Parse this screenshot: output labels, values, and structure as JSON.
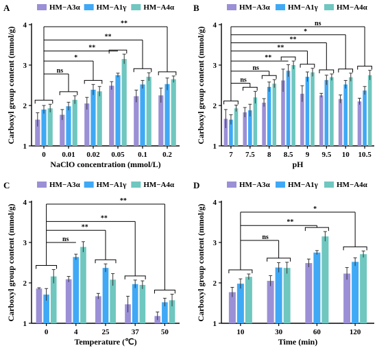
{
  "colors": {
    "A3a": "#9b8fd6",
    "A1g": "#3fa9f5",
    "A4a": "#6fc7bf"
  },
  "chart_data": [
    {
      "type": "bar",
      "panel": "A",
      "title": "A",
      "xlabel": "NaClO concentration (mmol/L)",
      "ylabel": "Carboxyl group content (mmol/g)",
      "ylim": [
        1,
        4
      ],
      "yticks": [
        "1",
        "2",
        "3",
        "4"
      ],
      "categories": [
        "0",
        "0.01",
        "0.02",
        "0.05",
        "0.1",
        "0.2"
      ],
      "series": [
        {
          "name": "HM−A3α",
          "color": "#9b8fd6",
          "values": [
            1.65,
            1.77,
            2.05,
            2.49,
            2.23,
            2.25
          ],
          "errors": [
            0.17,
            0.13,
            0.15,
            0.1,
            0.15,
            0.18
          ]
        },
        {
          "name": "HM−A1γ",
          "color": "#3fa9f5",
          "values": [
            1.9,
            1.98,
            2.39,
            2.75,
            2.52,
            2.53
          ],
          "errors": [
            0.1,
            0.1,
            0.13,
            0.05,
            0.1,
            0.15
          ]
        },
        {
          "name": "HM−A4α",
          "color": "#6fc7bf",
          "values": [
            1.93,
            2.14,
            2.35,
            3.15,
            2.71,
            2.65
          ],
          "errors": [
            0.1,
            0.1,
            0.12,
            0.12,
            0.1,
            0.08
          ]
        }
      ],
      "brackets": [
        0,
        1,
        2,
        3,
        4,
        5
      ],
      "sig_lines": [
        {
          "to": 5,
          "y": 3.95,
          "label": "**"
        },
        {
          "to": 4,
          "y": 3.62,
          "label": "**"
        },
        {
          "to": 3,
          "y": 3.35,
          "label": "**"
        },
        {
          "to": 2,
          "y": 3.1,
          "label": "*"
        },
        {
          "to": 1,
          "y": 2.78,
          "label": "ns"
        }
      ]
    },
    {
      "type": "bar",
      "panel": "B",
      "title": "B",
      "xlabel": "pH",
      "ylabel": "Carboxyl group content (mmol/g)",
      "ylim": [
        1,
        4
      ],
      "yticks": [
        "1",
        "2",
        "3",
        "4"
      ],
      "categories": [
        "7",
        "7.5",
        "8",
        "8.5",
        "9",
        "9.5",
        "10",
        "10.5"
      ],
      "series": [
        {
          "name": "HM−A3α",
          "color": "#9b8fd6",
          "values": [
            1.67,
            1.83,
            2.07,
            2.62,
            2.29,
            2.25,
            2.16,
            2.1
          ],
          "errors": [
            0.23,
            0.12,
            0.1,
            0.28,
            0.2,
            0.05,
            0.1,
            0.08
          ]
        },
        {
          "name": "HM−A1γ",
          "color": "#3fa9f5",
          "values": [
            1.65,
            1.88,
            2.46,
            2.86,
            2.71,
            2.63,
            2.52,
            2.37
          ],
          "errors": [
            0.12,
            0.15,
            0.12,
            0.15,
            0.12,
            0.12,
            0.1,
            0.1
          ]
        },
        {
          "name": "HM−A4α",
          "color": "#6fc7bf",
          "values": [
            1.93,
            2.2,
            2.54,
            3.0,
            2.82,
            2.7,
            2.7,
            2.75
          ],
          "errors": [
            0.08,
            0.15,
            0.1,
            0.1,
            0.1,
            0.08,
            0.1,
            0.12
          ]
        }
      ],
      "brackets": [
        0,
        1,
        2,
        3,
        4,
        5,
        6,
        7
      ],
      "sig_lines": [
        {
          "to": 7,
          "y": 3.95,
          "label": "ns"
        },
        {
          "to": 6,
          "y": 3.75,
          "label": "*"
        },
        {
          "to": 5,
          "y": 3.55,
          "label": "**"
        },
        {
          "to": 4,
          "y": 3.35,
          "label": "**"
        },
        {
          "to": 3,
          "y": 3.1,
          "label": "**"
        },
        {
          "to": 2,
          "y": 2.85,
          "label": "ns"
        },
        {
          "to": 1,
          "y": 2.55,
          "label": "ns"
        }
      ]
    },
    {
      "type": "bar",
      "panel": "C",
      "title": "C",
      "xlabel": "Temperature (℃)",
      "ylabel": "Carboxyl group content (mmol/g)",
      "ylim": [
        1,
        4
      ],
      "yticks": [
        "1",
        "2",
        "3",
        "4"
      ],
      "categories": [
        "0",
        "4",
        "25",
        "37",
        "50"
      ],
      "series": [
        {
          "name": "HM−A3α",
          "color": "#9b8fd6",
          "values": [
            1.86,
            2.09,
            1.67,
            1.47,
            1.18
          ],
          "errors": [
            0.02,
            0.07,
            0.07,
            0.2,
            0.1
          ]
        },
        {
          "name": "HM−A1γ",
          "color": "#3fa9f5",
          "values": [
            1.71,
            2.64,
            2.37,
            1.97,
            1.52
          ],
          "errors": [
            0.15,
            0.07,
            0.1,
            0.1,
            0.1
          ]
        },
        {
          "name": "HM−A4α",
          "color": "#6fc7bf",
          "values": [
            2.16,
            2.89,
            2.08,
            1.95,
            1.57
          ],
          "errors": [
            0.17,
            0.13,
            0.15,
            0.1,
            0.15
          ]
        }
      ],
      "brackets": [
        0,
        2,
        3,
        4
      ],
      "sig_lines": [
        {
          "to": 4,
          "y": 3.95,
          "label": "**"
        },
        {
          "to": 3,
          "y": 3.52,
          "label": "**"
        },
        {
          "to": 2,
          "y": 3.3,
          "label": "**"
        },
        {
          "to": 1,
          "y": 3.0,
          "label": "ns"
        }
      ]
    },
    {
      "type": "bar",
      "panel": "D",
      "title": "D",
      "xlabel": "Time (min)",
      "ylabel": "Carboxyl group content (mmol/g)",
      "ylim": [
        1,
        4
      ],
      "yticks": [
        "1",
        "2",
        "3",
        "4"
      ],
      "categories": [
        "10",
        "30",
        "60",
        "120"
      ],
      "series": [
        {
          "name": "HM−A3α",
          "color": "#9b8fd6",
          "values": [
            1.77,
            2.05,
            2.49,
            2.23
          ],
          "errors": [
            0.12,
            0.13,
            0.1,
            0.15
          ]
        },
        {
          "name": "HM−A1γ",
          "color": "#3fa9f5",
          "values": [
            1.98,
            2.38,
            2.75,
            2.52
          ],
          "errors": [
            0.12,
            0.12,
            0.05,
            0.1
          ]
        },
        {
          "name": "HM−A4α",
          "color": "#6fc7bf",
          "values": [
            2.15,
            2.37,
            3.15,
            2.71
          ],
          "errors": [
            0.07,
            0.14,
            0.12,
            0.08
          ]
        }
      ],
      "brackets": [
        0,
        1,
        2,
        3
      ],
      "sig_lines": [
        {
          "to": 3,
          "y": 3.75,
          "label": "*"
        },
        {
          "to": 2,
          "y": 3.42,
          "label": "**"
        },
        {
          "to": 1,
          "y": 3.05,
          "label": "ns"
        }
      ]
    }
  ]
}
